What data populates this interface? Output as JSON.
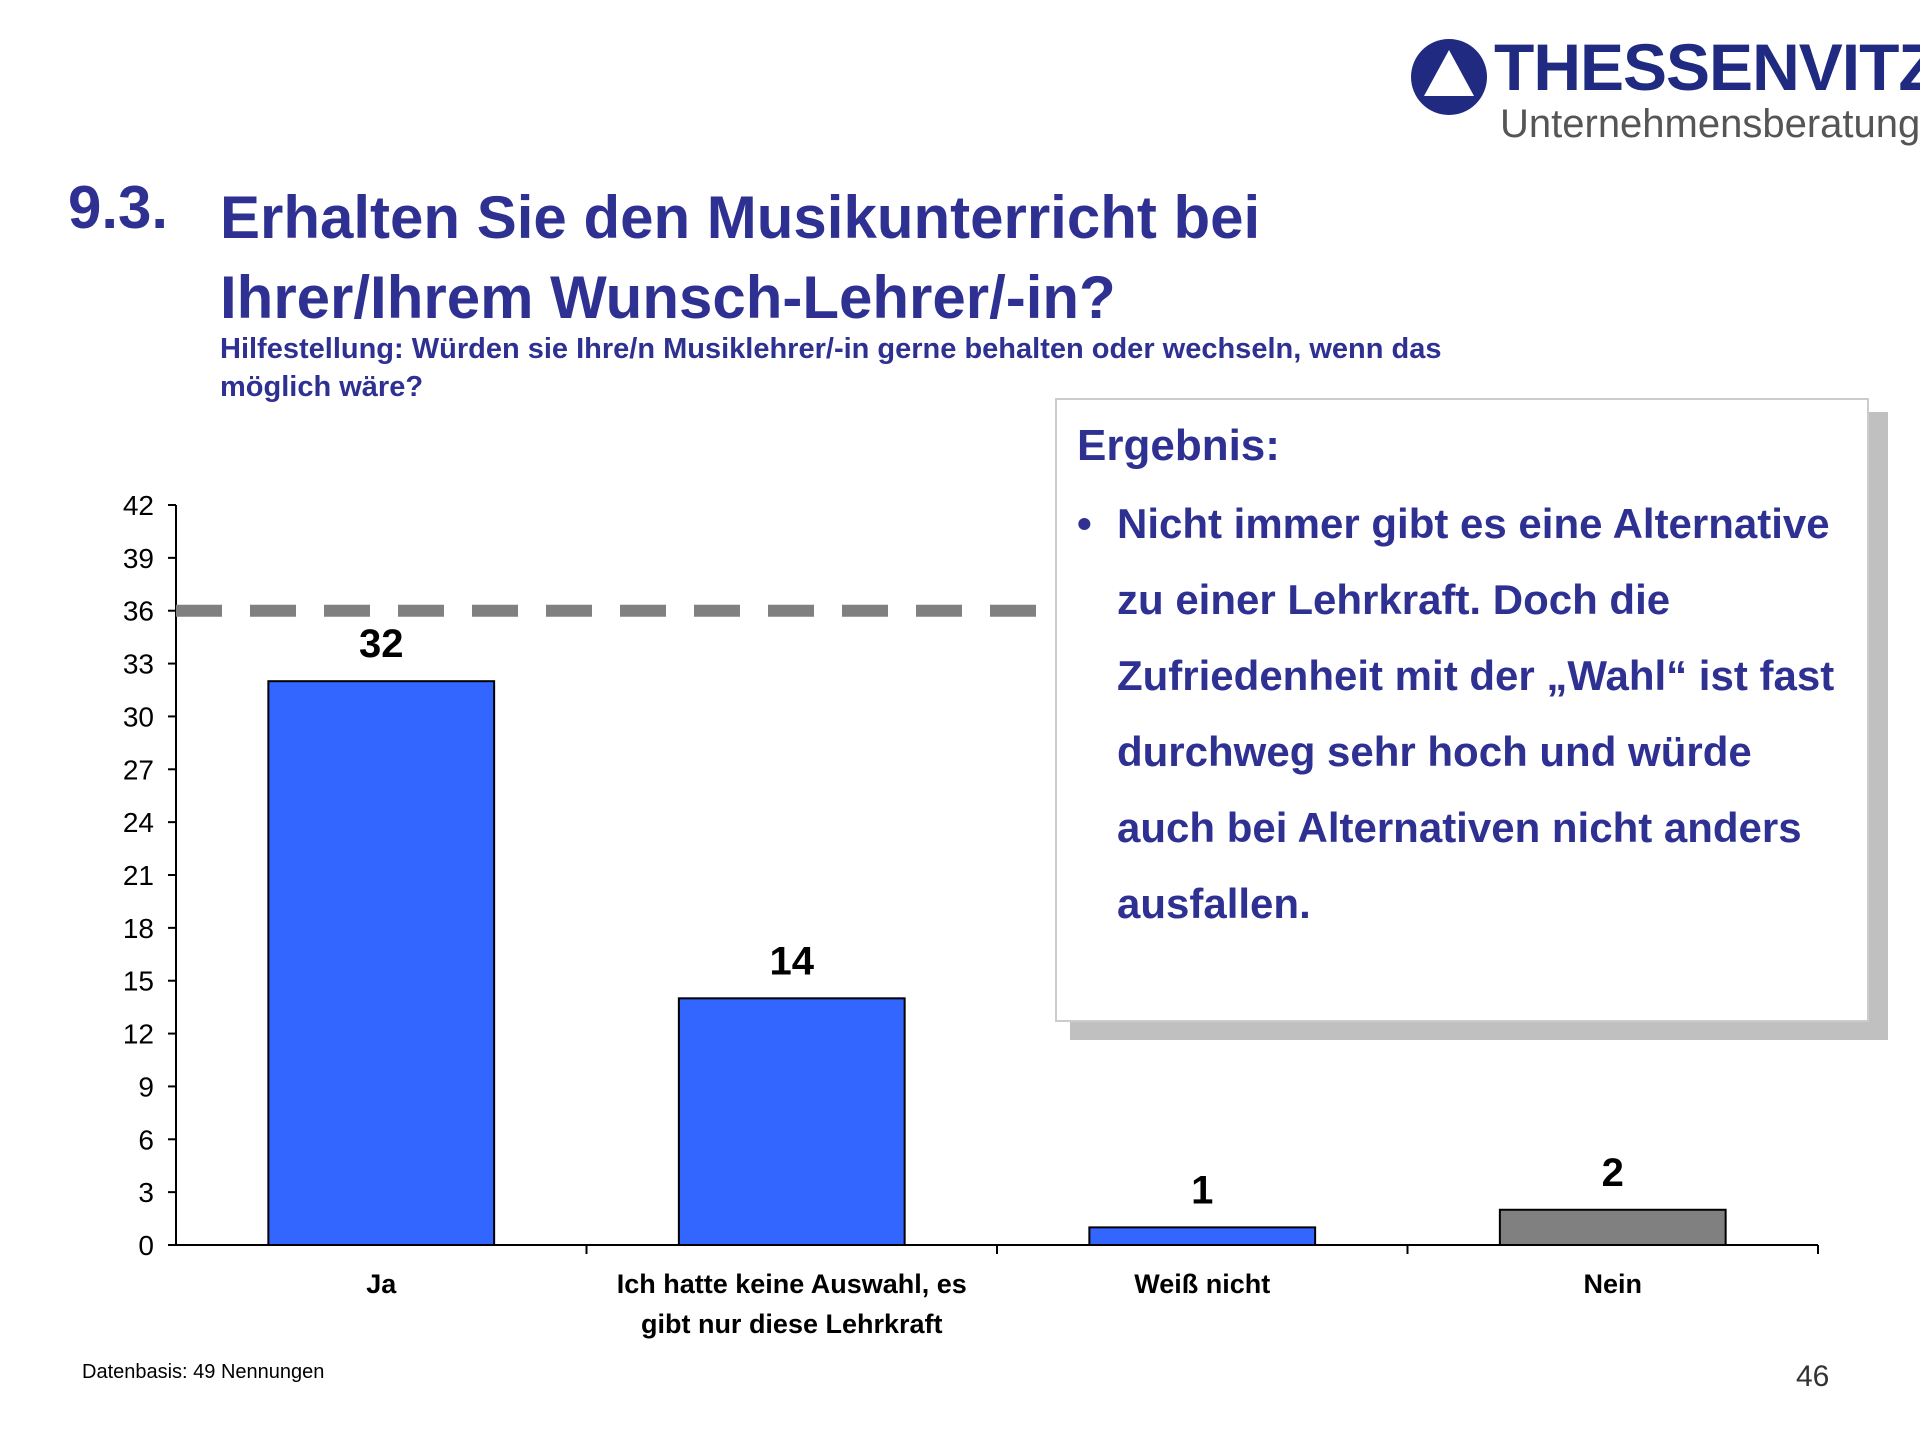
{
  "logo": {
    "brand": "THESSENVITZ",
    "tagline": "Unternehmensberatung"
  },
  "header": {
    "number": "9.3.",
    "title": "Erhalten Sie den Musikunterricht bei Ihrer/Ihrem Wunsch-Lehrer/-in?",
    "subtitle": "Hilfestellung: Würden sie Ihre/n Musiklehrer/-in gerne behalten oder wechseln, wenn das möglich wäre?"
  },
  "callout": {
    "heading": "Ergebnis:",
    "items": [
      "Nicht immer gibt es eine Alternative zu einer Lehrkraft. Doch die Zufriedenheit mit der „Wahl“ ist fast durchweg sehr hoch und würde auch bei Alternativen nicht anders ausfallen."
    ]
  },
  "chart_data": {
    "type": "bar",
    "categories": [
      "Ja",
      "Ich hatte keine Auswahl, es gibt nur diese Lehrkraft",
      "Weiß nicht",
      "Nein"
    ],
    "values": [
      32,
      14,
      1,
      2
    ],
    "colors": [
      "#3366ff",
      "#3366ff",
      "#3366ff",
      "#808080"
    ],
    "ylim": [
      0,
      42
    ],
    "yticks": [
      0,
      3,
      6,
      9,
      12,
      15,
      18,
      21,
      24,
      27,
      30,
      33,
      36,
      39,
      42
    ],
    "reference_line": 36,
    "grid": false
  },
  "footer": {
    "note": "Datenbasis: 49 Nennungen",
    "page": "46"
  }
}
